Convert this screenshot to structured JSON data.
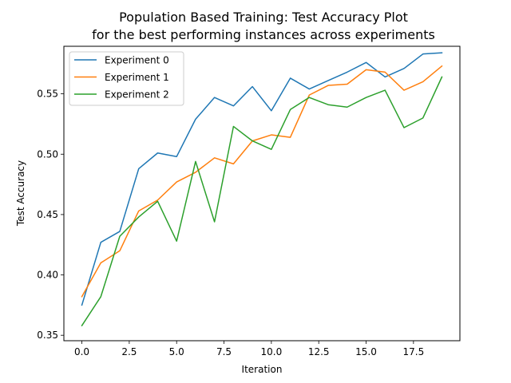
{
  "chart_data": {
    "type": "line",
    "title_line1": "Population Based Training: Test Accuracy Plot",
    "title_line2": "for the best performing instances across experiments",
    "xlabel": "Iteration",
    "ylabel": "Test Accuracy",
    "xlim": [
      -0.95,
      19.95
    ],
    "ylim": [
      0.3455,
      0.5894
    ],
    "xticks": [
      0,
      2.5,
      5,
      7.5,
      10,
      12.5,
      15,
      17.5
    ],
    "xtick_labels": [
      "0.0",
      "2.5",
      "5.0",
      "7.5",
      "10.0",
      "12.5",
      "15.0",
      "17.5"
    ],
    "yticks": [
      0.35,
      0.4,
      0.45,
      0.5,
      0.55
    ],
    "ytick_labels": [
      "0.35",
      "0.40",
      "0.45",
      "0.50",
      "0.55"
    ],
    "grid": false,
    "legend_position": "top-left",
    "x": [
      0,
      1,
      2,
      3,
      4,
      5,
      6,
      7,
      8,
      9,
      10,
      11,
      12,
      13,
      14,
      15,
      16,
      17,
      18,
      19
    ],
    "series": [
      {
        "name": "Experiment 0",
        "color": "#1f77b4",
        "values": [
          0.375,
          0.427,
          0.436,
          0.488,
          0.501,
          0.498,
          0.529,
          0.547,
          0.54,
          0.556,
          0.536,
          0.563,
          0.554,
          0.561,
          0.568,
          0.576,
          0.564,
          0.571,
          0.583,
          0.584
        ]
      },
      {
        "name": "Experiment 1",
        "color": "#ff7f0e",
        "values": [
          0.382,
          0.41,
          0.42,
          0.453,
          0.462,
          0.477,
          0.485,
          0.497,
          0.492,
          0.511,
          0.516,
          0.514,
          0.549,
          0.557,
          0.558,
          0.57,
          0.568,
          0.553,
          0.56,
          0.573
        ]
      },
      {
        "name": "Experiment 2",
        "color": "#2ca02c",
        "values": [
          0.358,
          0.382,
          0.432,
          0.448,
          0.461,
          0.428,
          0.494,
          0.444,
          0.523,
          0.511,
          0.504,
          0.537,
          0.547,
          0.541,
          0.539,
          0.547,
          0.553,
          0.522,
          0.53,
          0.564
        ]
      }
    ]
  }
}
